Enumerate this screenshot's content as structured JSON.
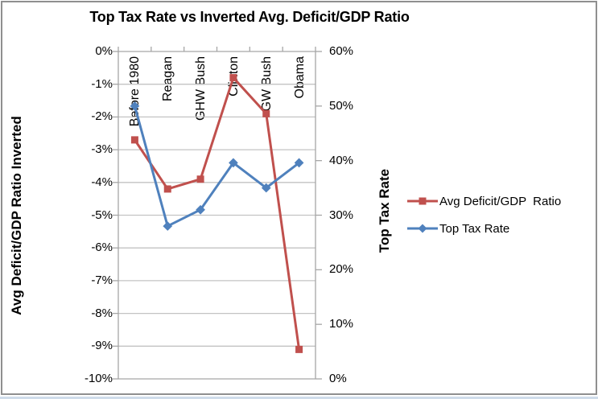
{
  "chart_data": {
    "type": "line",
    "title": "Top Tax Rate vs Inverted Avg. Deficit/GDP Ratio",
    "categories": [
      "Before 1980",
      "Reagan",
      "GHW Bush",
      "Clinton",
      "GW Bush",
      "Obama"
    ],
    "series": [
      {
        "name": "Avg Deficit/GDP  Ratio",
        "axis": "left",
        "color": "#C0504D",
        "marker": "square",
        "values": [
          -2.7,
          -4.2,
          -3.9,
          -0.8,
          -1.9,
          -9.1
        ]
      },
      {
        "name": "Top Tax Rate",
        "axis": "right",
        "color": "#4F81BD",
        "marker": "diamond",
        "values": [
          50,
          28,
          31,
          39.6,
          35,
          39.6
        ]
      }
    ],
    "left_axis": {
      "title": "Avg Deficit/GDP Ratio Inverted",
      "min": -10,
      "max": 0,
      "tick_labels": [
        "0%",
        "-1%",
        "-2%",
        "-3%",
        "-4%",
        "-5%",
        "-6%",
        "-7%",
        "-8%",
        "-9%",
        "-10%"
      ]
    },
    "right_axis": {
      "title": "Top Tax Rate",
      "min": 0,
      "max": 60,
      "tick_labels": [
        "60%",
        "50%",
        "40%",
        "30%",
        "20%",
        "10%",
        "0%"
      ]
    },
    "grid": true,
    "gridline_color": "#c3c3c3",
    "axis_line_color": "#a6a6a6",
    "legend_position": "right"
  }
}
